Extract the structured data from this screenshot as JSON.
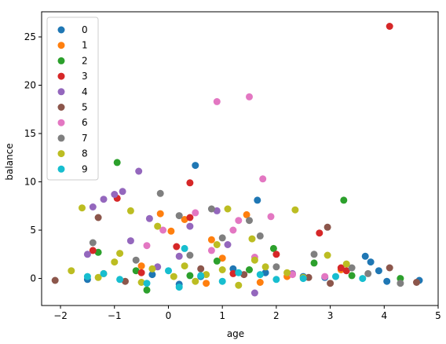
{
  "chart_data": {
    "type": "scatter",
    "title": "",
    "xlabel": "age",
    "ylabel": "balance",
    "xlim": [
      -2.35,
      5.0
    ],
    "ylim": [
      -2.8,
      27.6
    ],
    "xticks": [
      -2,
      -1,
      0,
      1,
      2,
      3,
      4,
      5
    ],
    "yticks": [
      0,
      5,
      10,
      15,
      20,
      25
    ],
    "xtick_labels": [
      "−2",
      "−1",
      "0",
      "1",
      "2",
      "3",
      "4",
      "5"
    ],
    "ytick_labels": [
      "0",
      "5",
      "10",
      "15",
      "20",
      "25"
    ],
    "grid": false,
    "legend": "top-left",
    "series": [
      {
        "name": "0",
        "color": "#1f77b4",
        "points": [
          [
            0.5,
            11.7
          ],
          [
            1.65,
            8.1
          ],
          [
            4.65,
            -0.2
          ],
          [
            3.65,
            2.3
          ],
          [
            3.75,
            1.7
          ],
          [
            4.05,
            -0.3
          ],
          [
            3.9,
            0.8
          ],
          [
            -0.3,
            0.4
          ],
          [
            0.6,
            0.2
          ],
          [
            1.8,
            0.6
          ],
          [
            2.5,
            0.2
          ],
          [
            -1.5,
            -0.1
          ],
          [
            0.2,
            -0.6
          ],
          [
            1.2,
            1.0
          ],
          [
            2.9,
            0.1
          ]
        ]
      },
      {
        "name": "1",
        "color": "#ff7f0e",
        "points": [
          [
            -0.15,
            6.7
          ],
          [
            0.05,
            4.9
          ],
          [
            0.8,
            4.0
          ],
          [
            1.45,
            6.6
          ],
          [
            0.3,
            6.1
          ],
          [
            -0.5,
            1.3
          ],
          [
            1.0,
            2.1
          ],
          [
            3.2,
            0.9
          ],
          [
            -1.2,
            0.5
          ],
          [
            0.7,
            -0.5
          ],
          [
            2.2,
            0.2
          ],
          [
            1.7,
            -0.4
          ]
        ]
      },
      {
        "name": "2",
        "color": "#2ca02c",
        "points": [
          [
            -0.95,
            12.0
          ],
          [
            3.25,
            8.1
          ],
          [
            1.95,
            3.1
          ],
          [
            -1.3,
            2.7
          ],
          [
            0.9,
            1.8
          ],
          [
            -0.6,
            0.8
          ],
          [
            0.4,
            0.3
          ],
          [
            2.7,
            1.6
          ],
          [
            4.3,
            0.0
          ],
          [
            -0.4,
            -1.2
          ],
          [
            1.5,
            0.9
          ],
          [
            3.4,
            0.3
          ]
        ]
      },
      {
        "name": "3",
        "color": "#d62728",
        "points": [
          [
            4.1,
            26.1
          ],
          [
            0.4,
            9.9
          ],
          [
            -0.95,
            8.3
          ],
          [
            0.4,
            6.3
          ],
          [
            2.8,
            4.7
          ],
          [
            -1.4,
            2.9
          ],
          [
            0.15,
            3.3
          ],
          [
            3.2,
            1.1
          ],
          [
            1.2,
            0.5
          ],
          [
            -0.5,
            0.6
          ],
          [
            2.0,
            2.5
          ],
          [
            3.3,
            0.8
          ]
        ]
      },
      {
        "name": "4",
        "color": "#9467bd",
        "points": [
          [
            -0.55,
            11.1
          ],
          [
            -0.85,
            9.0
          ],
          [
            -1.0,
            8.7
          ],
          [
            -1.2,
            8.2
          ],
          [
            -1.4,
            7.4
          ],
          [
            -0.35,
            6.2
          ],
          [
            0.9,
            7.0
          ],
          [
            -0.7,
            3.9
          ],
          [
            0.4,
            5.4
          ],
          [
            -1.5,
            2.5
          ],
          [
            1.6,
            -1.5
          ],
          [
            0.2,
            2.3
          ],
          [
            -0.2,
            1.2
          ],
          [
            2.3,
            0.5
          ],
          [
            1.1,
            3.5
          ]
        ]
      },
      {
        "name": "5",
        "color": "#8c564b",
        "points": [
          [
            -1.3,
            6.3
          ],
          [
            2.95,
            5.3
          ],
          [
            4.1,
            1.1
          ],
          [
            4.6,
            -0.4
          ],
          [
            -2.1,
            -0.2
          ],
          [
            3.0,
            -0.5
          ],
          [
            0.6,
            1.0
          ],
          [
            -0.8,
            -0.3
          ],
          [
            1.4,
            0.4
          ],
          [
            2.6,
            0.1
          ]
        ]
      },
      {
        "name": "6",
        "color": "#e377c2",
        "points": [
          [
            1.5,
            18.8
          ],
          [
            0.9,
            18.3
          ],
          [
            1.75,
            10.3
          ],
          [
            1.3,
            6.0
          ],
          [
            1.9,
            6.4
          ],
          [
            0.5,
            6.8
          ],
          [
            -0.1,
            5.0
          ],
          [
            1.2,
            5.0
          ],
          [
            2.3,
            0.4
          ],
          [
            2.9,
            0.2
          ],
          [
            -0.4,
            3.4
          ],
          [
            0.8,
            2.9
          ],
          [
            1.6,
            2.2
          ]
        ]
      },
      {
        "name": "7",
        "color": "#7f7f7f",
        "points": [
          [
            -0.15,
            8.8
          ],
          [
            0.8,
            7.2
          ],
          [
            0.2,
            6.5
          ],
          [
            1.5,
            6.0
          ],
          [
            -1.4,
            3.7
          ],
          [
            2.7,
            2.5
          ],
          [
            1.7,
            4.4
          ],
          [
            3.7,
            0.5
          ],
          [
            4.3,
            -0.5
          ],
          [
            0.4,
            2.4
          ],
          [
            -0.6,
            1.9
          ],
          [
            2.0,
            1.2
          ],
          [
            1.0,
            4.2
          ],
          [
            3.4,
            1.1
          ]
        ]
      },
      {
        "name": "8",
        "color": "#bcbd22",
        "points": [
          [
            -1.6,
            7.3
          ],
          [
            -0.7,
            7.0
          ],
          [
            1.1,
            7.2
          ],
          [
            2.35,
            7.1
          ],
          [
            -0.2,
            5.4
          ],
          [
            0.9,
            3.5
          ],
          [
            1.55,
            4.1
          ],
          [
            2.95,
            2.4
          ],
          [
            3.3,
            1.5
          ],
          [
            -1.8,
            0.8
          ],
          [
            -1.0,
            1.7
          ],
          [
            0.3,
            1.3
          ],
          [
            1.8,
            1.2
          ],
          [
            2.5,
            0.1
          ],
          [
            -0.5,
            -0.4
          ],
          [
            0.7,
            0.4
          ],
          [
            1.3,
            -0.7
          ],
          [
            -1.3,
            0.1
          ],
          [
            0.1,
            0.2
          ],
          [
            1.6,
            1.9
          ],
          [
            2.2,
            0.6
          ],
          [
            -0.9,
            2.6
          ],
          [
            0.5,
            -0.3
          ],
          [
            1.0,
            0.9
          ],
          [
            -0.3,
            1.0
          ]
        ]
      },
      {
        "name": "9",
        "color": "#17becf",
        "points": [
          [
            0.3,
            3.1
          ],
          [
            -1.5,
            0.2
          ],
          [
            -0.9,
            -0.1
          ],
          [
            0.0,
            0.8
          ],
          [
            1.0,
            -0.3
          ],
          [
            1.7,
            0.4
          ],
          [
            2.5,
            0.0
          ],
          [
            3.1,
            0.2
          ],
          [
            -0.4,
            -0.5
          ],
          [
            0.6,
            0.3
          ],
          [
            1.3,
            0.6
          ],
          [
            2.0,
            -0.1
          ],
          [
            -1.2,
            0.5
          ],
          [
            0.2,
            -0.9
          ],
          [
            3.6,
            0.0
          ]
        ]
      }
    ]
  }
}
